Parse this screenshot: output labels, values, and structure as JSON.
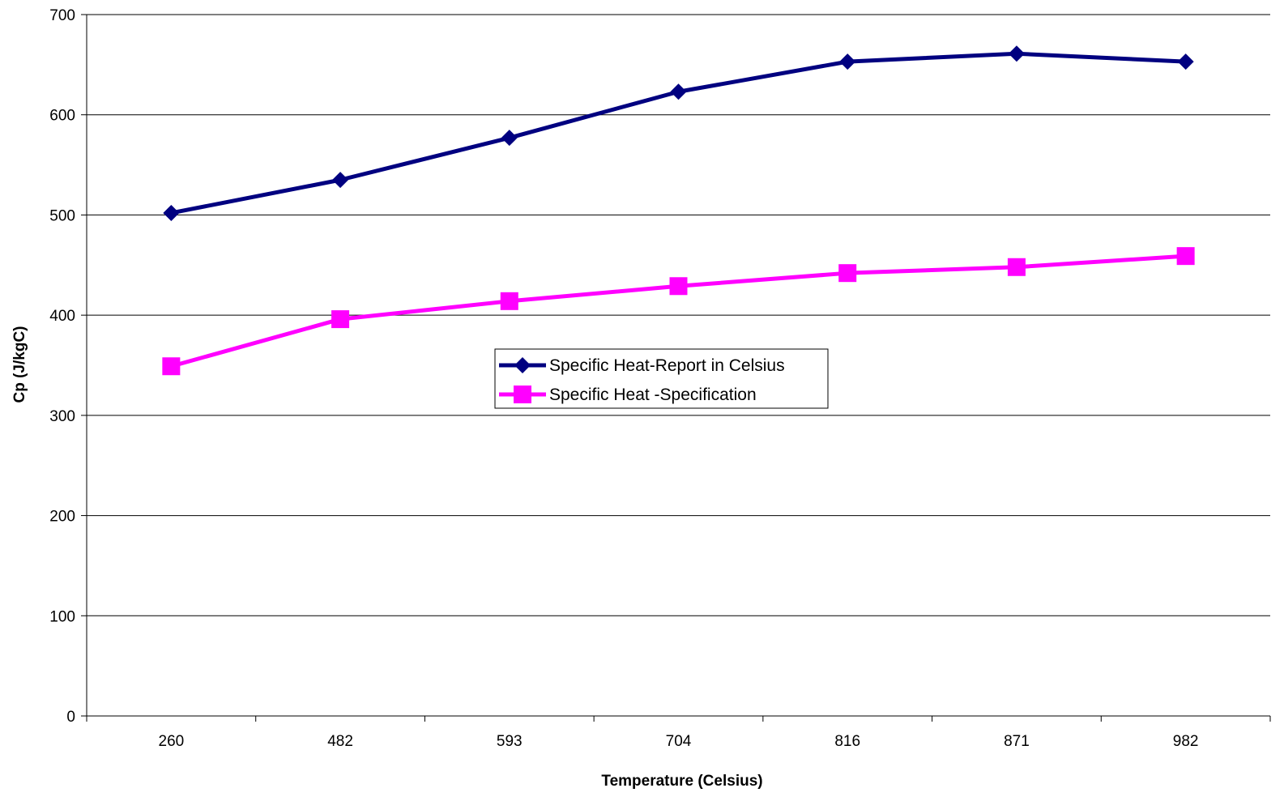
{
  "chart_data": {
    "type": "line",
    "title": "",
    "xlabel": "Temperature (Celsius)",
    "ylabel": "Cp (J/kgC)",
    "categories": [
      "260",
      "482",
      "593",
      "704",
      "816",
      "871",
      "982"
    ],
    "ylim": [
      0,
      700
    ],
    "yticks": [
      0,
      100,
      200,
      300,
      400,
      500,
      600,
      700
    ],
    "grid": "horizontal",
    "legend_position": "center",
    "series": [
      {
        "name": "Specific Heat-Report in Celsius",
        "color": "#000080",
        "marker": "diamond",
        "values": [
          502,
          535,
          577,
          623,
          653,
          661,
          653
        ]
      },
      {
        "name": "Specific Heat -Specification",
        "color": "#ff00ff",
        "marker": "square",
        "values": [
          349,
          396,
          414,
          429,
          442,
          448,
          459
        ]
      }
    ]
  }
}
